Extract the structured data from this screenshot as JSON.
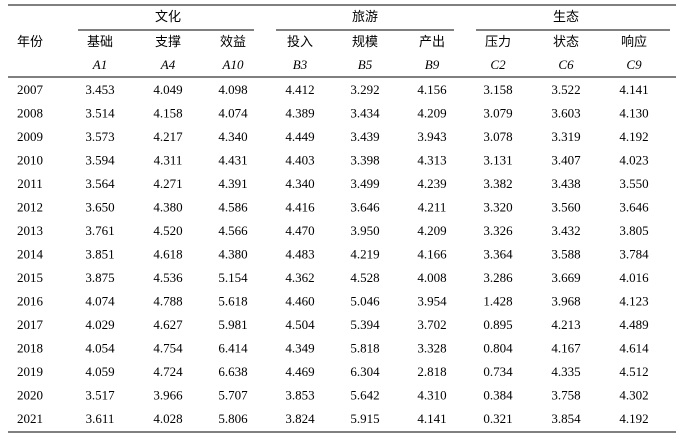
{
  "table": {
    "groups": [
      "文化",
      "旅游",
      "生态"
    ],
    "header": [
      "年份",
      "基础",
      "支撑",
      "效益",
      "投入",
      "规模",
      "产出",
      "压力",
      "状态",
      "响应"
    ],
    "codes": [
      "A1",
      "A4",
      "A10",
      "B3",
      "B5",
      "B9",
      "C2",
      "C6",
      "C9"
    ],
    "rows": [
      [
        "2007",
        "3.453",
        "4.049",
        "4.098",
        "4.412",
        "3.292",
        "4.156",
        "3.158",
        "3.522",
        "4.141"
      ],
      [
        "2008",
        "3.514",
        "4.158",
        "4.074",
        "4.389",
        "3.434",
        "4.209",
        "3.079",
        "3.603",
        "4.130"
      ],
      [
        "2009",
        "3.573",
        "4.217",
        "4.340",
        "4.449",
        "3.439",
        "3.943",
        "3.078",
        "3.319",
        "4.192"
      ],
      [
        "2010",
        "3.594",
        "4.311",
        "4.431",
        "4.403",
        "3.398",
        "4.313",
        "3.131",
        "3.407",
        "4.023"
      ],
      [
        "2011",
        "3.564",
        "4.271",
        "4.391",
        "4.340",
        "3.499",
        "4.239",
        "3.382",
        "3.438",
        "3.550"
      ],
      [
        "2012",
        "3.650",
        "4.380",
        "4.586",
        "4.416",
        "3.646",
        "4.211",
        "3.320",
        "3.560",
        "3.646"
      ],
      [
        "2013",
        "3.761",
        "4.520",
        "4.566",
        "4.470",
        "3.950",
        "4.209",
        "3.326",
        "3.432",
        "3.805"
      ],
      [
        "2014",
        "3.851",
        "4.618",
        "4.380",
        "4.483",
        "4.219",
        "4.166",
        "3.364",
        "3.588",
        "3.784"
      ],
      [
        "2015",
        "3.875",
        "4.536",
        "5.154",
        "4.362",
        "4.528",
        "4.008",
        "3.286",
        "3.669",
        "4.016"
      ],
      [
        "2016",
        "4.074",
        "4.788",
        "5.618",
        "4.460",
        "5.046",
        "3.954",
        "1.428",
        "3.968",
        "4.123"
      ],
      [
        "2017",
        "4.029",
        "4.627",
        "5.981",
        "4.504",
        "5.394",
        "3.702",
        "0.895",
        "4.213",
        "4.489"
      ],
      [
        "2018",
        "4.054",
        "4.754",
        "6.414",
        "4.349",
        "5.818",
        "3.328",
        "0.804",
        "4.167",
        "4.614"
      ],
      [
        "2019",
        "4.059",
        "4.724",
        "6.638",
        "4.469",
        "6.304",
        "2.818",
        "0.734",
        "4.335",
        "4.512"
      ],
      [
        "2020",
        "3.517",
        "3.966",
        "5.707",
        "3.853",
        "5.642",
        "4.310",
        "0.384",
        "3.758",
        "4.302"
      ],
      [
        "2021",
        "3.611",
        "4.028",
        "5.806",
        "3.824",
        "5.915",
        "4.141",
        "0.321",
        "3.854",
        "4.192"
      ]
    ]
  }
}
